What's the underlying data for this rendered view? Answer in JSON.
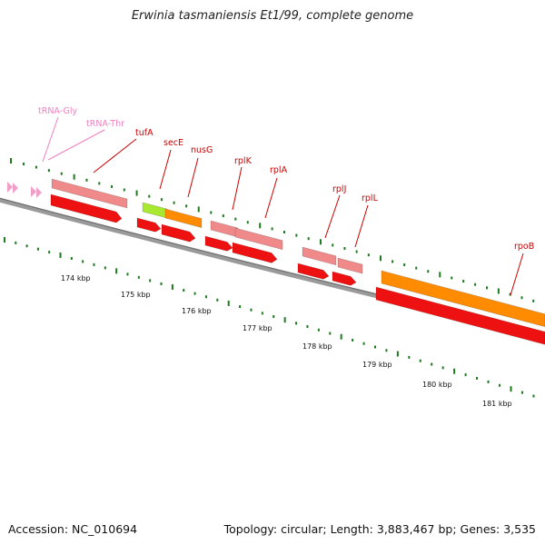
{
  "title": "Erwinia tasmaniensis Et1/99, complete genome",
  "footer": {
    "accession": "Accession: NC_010694",
    "summary": "Topology: circular; Length: 3,883,467 bp; Genes: 3,535"
  },
  "colors": {
    "background": "#ffffff",
    "backbone": "#808080",
    "tick": "#1e7a1e",
    "trna": "#f0a0c8",
    "rrna_pink": "#f08a8a",
    "cds_red": "#ee1111",
    "orange": "#ff8c00",
    "lime": "#a8e830",
    "gene_label": "#cc0000",
    "trna_label": "#f080c0"
  },
  "scale_labels": [
    "174 kbp",
    "175 kbp",
    "176 kbp",
    "177 kbp",
    "178 kbp",
    "179 kbp",
    "180 kbp",
    "181 kbp"
  ],
  "gene_labels": [
    {
      "text": "tRNA-Gly",
      "kind": "trna"
    },
    {
      "text": "tRNA-Thr",
      "kind": "trna"
    },
    {
      "text": "tufA",
      "kind": "gene"
    },
    {
      "text": "secE",
      "kind": "gene"
    },
    {
      "text": "nusG",
      "kind": "gene"
    },
    {
      "text": "rplK",
      "kind": "gene"
    },
    {
      "text": "rplA",
      "kind": "gene"
    },
    {
      "text": "rplJ",
      "kind": "gene"
    },
    {
      "text": "rplL",
      "kind": "gene"
    },
    {
      "text": "rpoB",
      "kind": "gene"
    }
  ]
}
